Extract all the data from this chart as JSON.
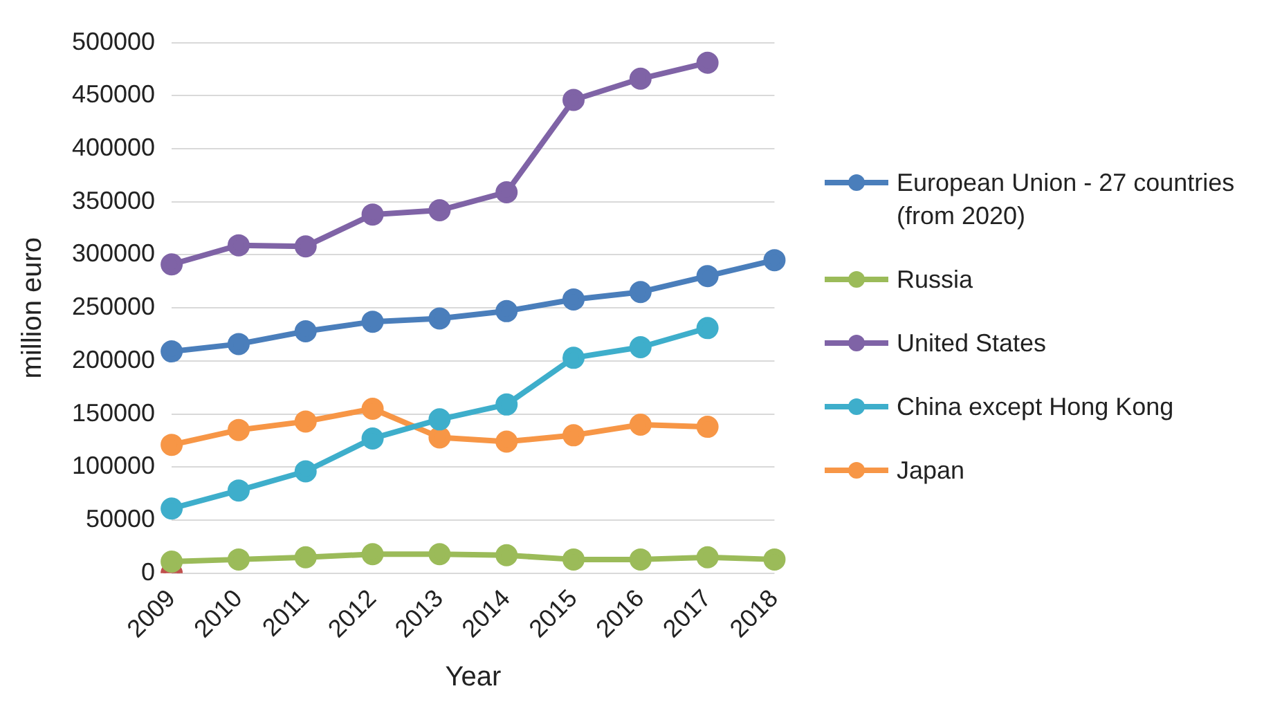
{
  "chart_data": {
    "type": "line",
    "xlabel": "Year",
    "ylabel": "million euro",
    "categories": [
      "2009",
      "2010",
      "2011",
      "2012",
      "2013",
      "2014",
      "2015",
      "2016",
      "2017",
      "2018"
    ],
    "ylim": [
      0,
      500000
    ],
    "yticks": [
      0,
      50000,
      100000,
      150000,
      200000,
      250000,
      300000,
      350000,
      400000,
      450000,
      500000
    ],
    "grid": "y",
    "legend": "right",
    "marker": "circle",
    "series": [
      {
        "name": "European Union - 27 countries (from 2020)",
        "color": "#4a7ebb",
        "values": [
          209000,
          216000,
          228000,
          237000,
          240000,
          247000,
          258000,
          265000,
          280000,
          295000
        ]
      },
      {
        "name": "Russia",
        "color": "#9bbb59",
        "values": [
          11000,
          13000,
          15000,
          18000,
          18000,
          17000,
          13000,
          13000,
          15000,
          13000
        ]
      },
      {
        "name": "United States",
        "color": "#7f63a6",
        "values": [
          291000,
          309000,
          308000,
          338000,
          342000,
          359000,
          446000,
          466000,
          481000,
          null
        ]
      },
      {
        "name": "China except Hong Kong",
        "color": "#3eaecb",
        "values": [
          61000,
          78000,
          96000,
          127000,
          145000,
          159000,
          203000,
          213000,
          231000,
          null
        ]
      },
      {
        "name": "Japan",
        "color": "#f79646",
        "values": [
          121000,
          135000,
          143000,
          155000,
          128000,
          124000,
          130000,
          140000,
          138000,
          null
        ]
      },
      {
        "color": "#c0504d",
        "values": [
          0,
          null,
          null,
          null,
          null,
          null,
          null,
          null,
          null,
          null
        ]
      }
    ]
  }
}
